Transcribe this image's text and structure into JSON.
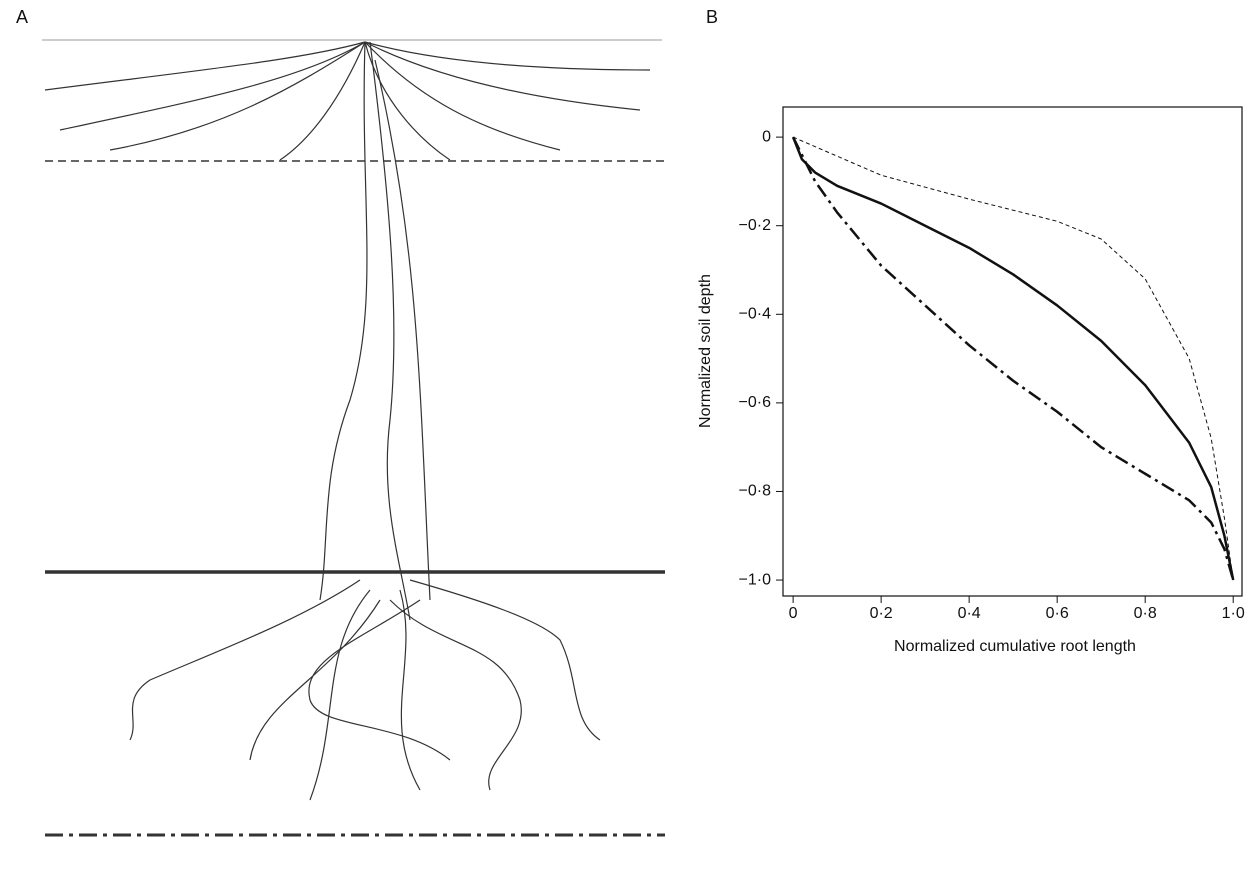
{
  "panel_a": {
    "label": "A"
  },
  "chart_data": {
    "type": "line",
    "panel_label": "B",
    "xlabel": "Normalized cumulative root length",
    "ylabel": "Normalized soil depth",
    "xlim": [
      -0.023,
      1.02
    ],
    "ylim": [
      -1.036,
      0.068
    ],
    "xticks": [
      0,
      {
        "value": 0.2,
        "label": "0·2"
      },
      {
        "value": 0.4,
        "label": "0·4"
      },
      {
        "value": 0.6,
        "label": "0·6"
      },
      {
        "value": 0.8,
        "label": "0·8"
      },
      {
        "value": 1.0,
        "label": "1·0"
      }
    ],
    "yticks": [
      0,
      {
        "value": -0.2,
        "label": "−0·2"
      },
      {
        "value": -0.4,
        "label": "−0·4"
      },
      {
        "value": -0.6,
        "label": "−0·6"
      },
      {
        "value": -0.8,
        "label": "−0·8"
      },
      {
        "value": -1.0,
        "label": "−1·0"
      }
    ],
    "series": [
      {
        "color": "#111111",
        "linestyle": "dashed",
        "x": [
          0,
          0.2,
          0.4,
          0.6,
          0.7,
          0.8,
          0.9,
          0.95,
          0.98,
          1.0
        ],
        "values": [
          0,
          -0.086,
          -0.14,
          -0.19,
          -0.23,
          -0.32,
          -0.5,
          -0.68,
          -0.86,
          -1.0
        ]
      },
      {
        "color": "#111111",
        "linestyle": "solid",
        "x": [
          0,
          0.02,
          0.05,
          0.1,
          0.2,
          0.3,
          0.4,
          0.5,
          0.6,
          0.7,
          0.8,
          0.9,
          0.95,
          0.98,
          1.0
        ],
        "values": [
          0,
          -0.05,
          -0.08,
          -0.11,
          -0.15,
          -0.2,
          -0.25,
          -0.31,
          -0.38,
          -0.46,
          -0.56,
          -0.69,
          -0.79,
          -0.9,
          -1.0
        ]
      },
      {
        "color": "#111111",
        "linestyle": "dashdot",
        "x": [
          0,
          0.05,
          0.1,
          0.2,
          0.3,
          0.4,
          0.5,
          0.6,
          0.7,
          0.8,
          0.9,
          0.95,
          0.98,
          1.0
        ],
        "values": [
          0,
          -0.1,
          -0.17,
          -0.29,
          -0.38,
          -0.47,
          -0.55,
          -0.62,
          -0.7,
          -0.76,
          -0.82,
          -0.87,
          -0.93,
          -1.0
        ]
      }
    ]
  }
}
